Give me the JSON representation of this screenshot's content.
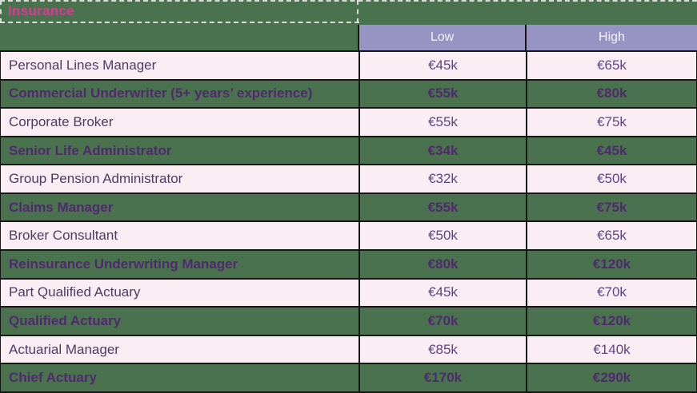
{
  "title": "Insurance",
  "header": {
    "low_label": "Low",
    "high_label": "High"
  },
  "colors": {
    "table_green": "#4A724E",
    "row_pink": "#FAEEF4",
    "header_purple": "#9794C4",
    "header_text": "#F5F2F8",
    "title_pink": "#D63C94",
    "pink_row_text": "#4C3C63",
    "pink_row_value_text": "#5F4486",
    "green_row_text": "#50296E",
    "grid_border": "#161616",
    "selection_dash": "#DCDCDC"
  },
  "chart_data": {
    "type": "table",
    "title": "Insurance",
    "columns": [
      "",
      "Low",
      "High"
    ],
    "rows": [
      [
        "Personal Lines Manager",
        "€45k",
        "€65k"
      ],
      [
        "Commercial Underwriter (5+ years’ experience)",
        "€55k",
        "€80k"
      ],
      [
        "Corporate Broker",
        "€55k",
        "€75k"
      ],
      [
        "Senior Life Administrator",
        "€34k",
        "€45k"
      ],
      [
        "Group Pension Administrator",
        "€32k",
        "€50k"
      ],
      [
        "Claims Manager",
        "€55k",
        "€75k"
      ],
      [
        "Broker Consultant",
        "€50k",
        "€65k"
      ],
      [
        "Reinsurance Underwriting Manager",
        "€80k",
        "€120k"
      ],
      [
        "Part Qualified Actuary",
        "€45k",
        "€70k"
      ],
      [
        "Qualified Actuary",
        "€70k",
        "€120k"
      ],
      [
        "Actuarial Manager",
        "€85k",
        "€140k"
      ],
      [
        "Chief Actuary",
        "€170k",
        "€290k"
      ]
    ],
    "layout": {
      "alternating_row_styles": [
        "pink",
        "green-bold"
      ],
      "value_alignment": "center",
      "role_alignment": "left",
      "title_cell_has_dashed_selection": true
    }
  }
}
